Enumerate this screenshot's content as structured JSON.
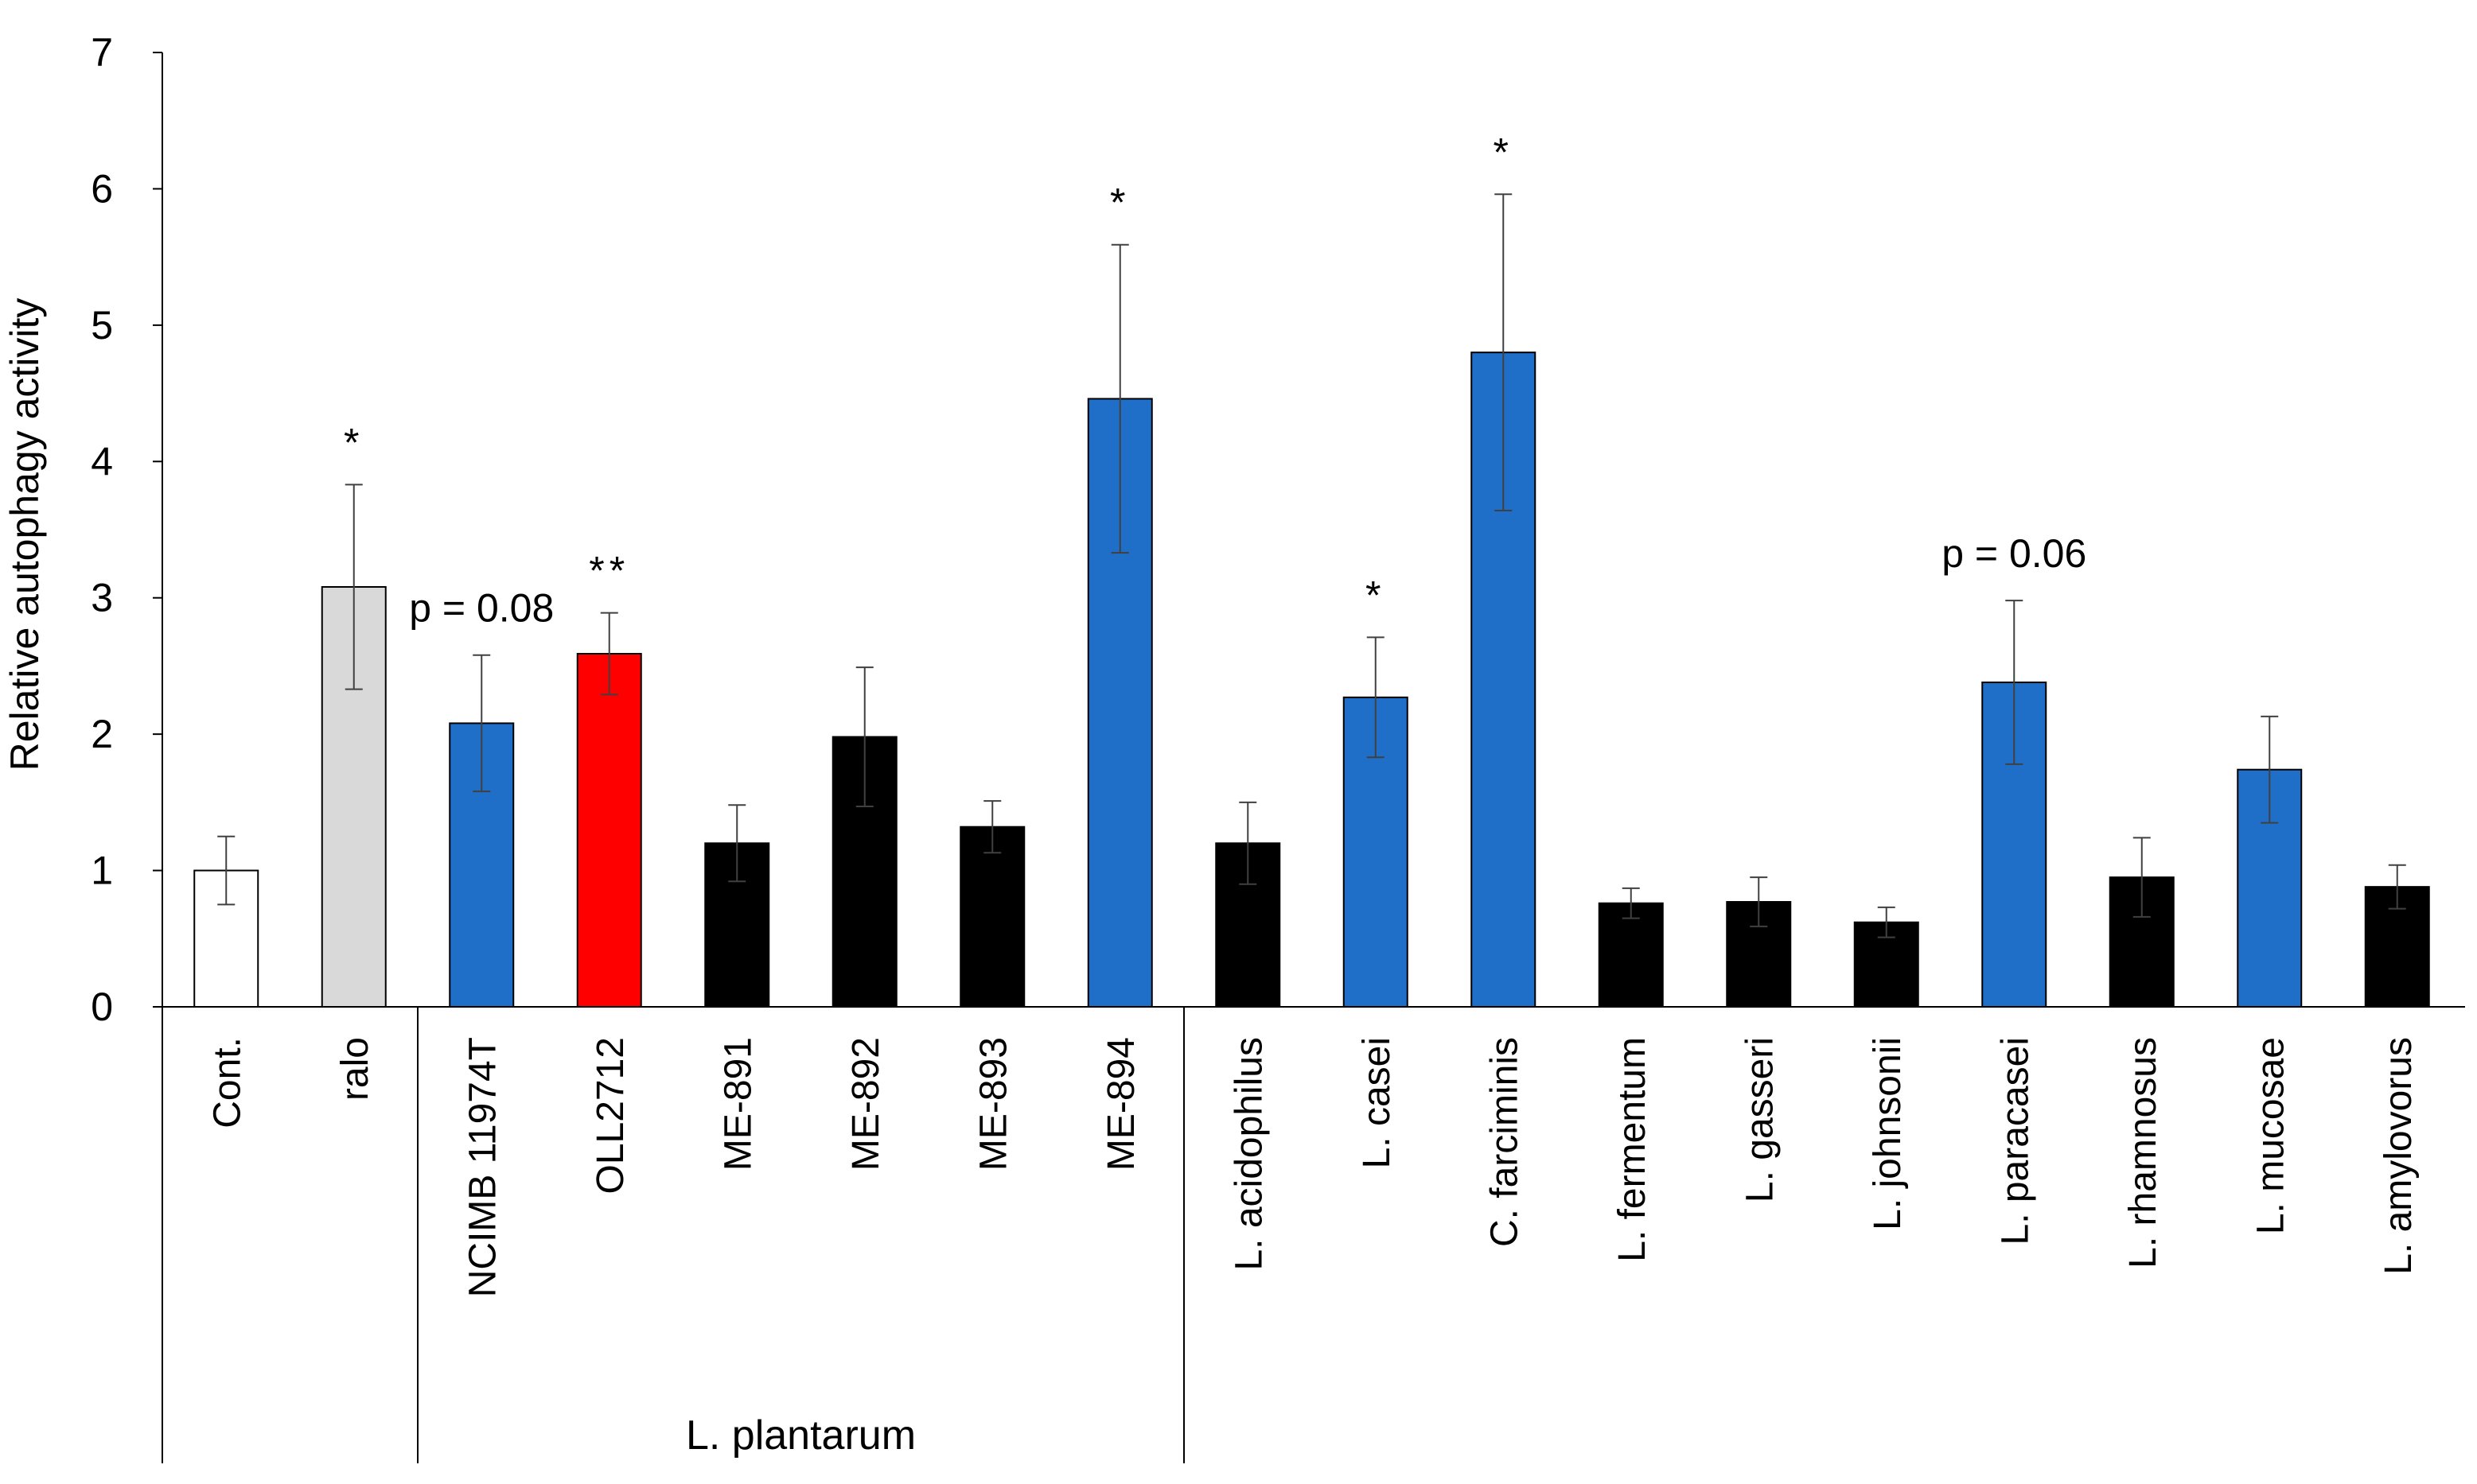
{
  "chart_data": {
    "type": "bar",
    "title": "",
    "ylabel": "Relative autophagy activity",
    "xlabel": "",
    "ylim": [
      0,
      7
    ],
    "yticks": [
      0,
      1,
      2,
      3,
      4,
      5,
      6,
      7
    ],
    "grid": false,
    "legend": "none",
    "categories": [
      "Cont.",
      "ralo",
      "NCIMB 11974T",
      "OLL2712",
      "ME-891",
      "ME-892",
      "ME-893",
      "ME-894",
      "L.  acidophilus",
      "L. casei",
      "C. farciminis",
      "L. fermentum",
      "L. gasseri",
      "L. johnsonii",
      "L. paracasei",
      "L. rhamnosus",
      "L. mucosae",
      "L. amylovorus"
    ],
    "values": [
      1.0,
      3.08,
      2.08,
      2.59,
      1.2,
      1.98,
      1.32,
      4.46,
      1.2,
      2.27,
      4.8,
      0.76,
      0.77,
      0.62,
      2.38,
      0.95,
      1.74,
      0.88
    ],
    "errors": [
      0.25,
      0.75,
      0.5,
      0.3,
      0.28,
      0.51,
      0.19,
      1.13,
      0.3,
      0.44,
      1.16,
      0.11,
      0.18,
      0.11,
      0.6,
      0.29,
      0.39,
      0.16
    ],
    "bar_colors": [
      "#ffffff",
      "#d9d9d9",
      "#1f6fc8",
      "#ff0000",
      "#000000",
      "#000000",
      "#000000",
      "#1f6fc8",
      "#000000",
      "#1f6fc8",
      "#1f6fc8",
      "#000000",
      "#000000",
      "#000000",
      "#1f6fc8",
      "#000000",
      "#1f6fc8",
      "#000000"
    ],
    "significance": [
      "",
      "*",
      "",
      "**",
      "",
      "",
      "",
      "*",
      "",
      "*",
      "*",
      "",
      "",
      "",
      "",
      "",
      "",
      ""
    ],
    "annotations": [
      {
        "text": "p = 0.08",
        "category_index": 2
      },
      {
        "text": "p = 0.06",
        "category_index": 14
      }
    ],
    "groups": [
      {
        "label": "",
        "start": 0,
        "end": 1
      },
      {
        "label": "L. plantarum",
        "start": 2,
        "end": 7
      },
      {
        "label": "",
        "start": 8,
        "end": 17
      }
    ]
  }
}
